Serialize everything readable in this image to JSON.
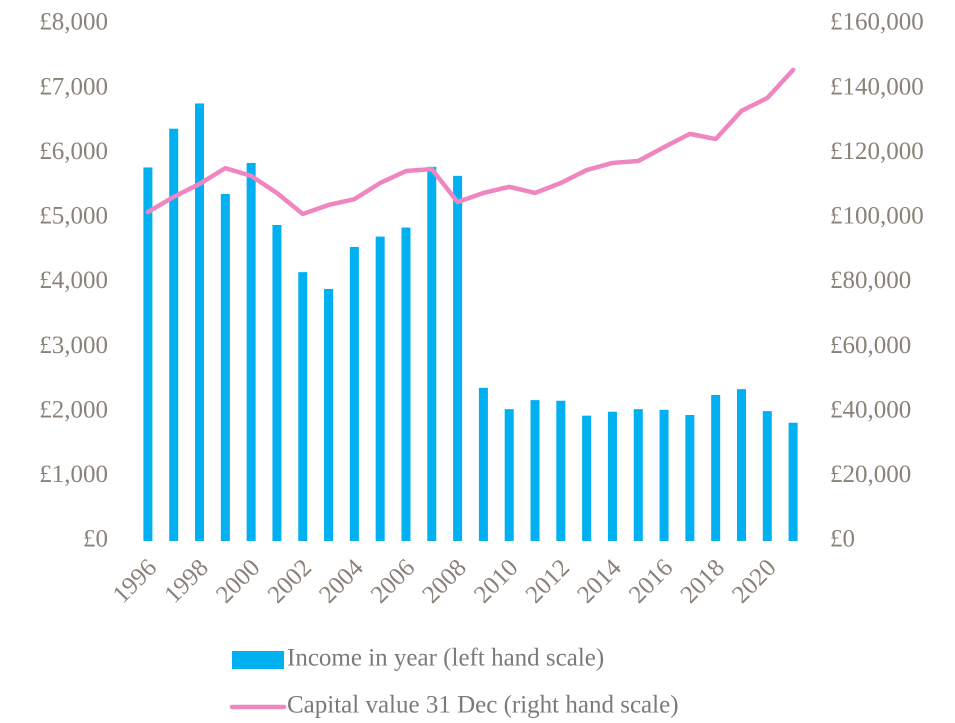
{
  "chart_data": {
    "type": "bar-line",
    "categories": [
      "1996",
      null,
      "1998",
      null,
      "2000",
      null,
      "2002",
      null,
      "2004",
      null,
      "2006",
      null,
      "2008",
      null,
      "2010",
      null,
      "2012",
      null,
      "2014",
      null,
      "2016",
      null,
      "2018",
      null,
      "2020",
      null
    ],
    "series": [
      {
        "name": "Income in year (left hand scale)",
        "type": "bar",
        "color": "#00b0f0",
        "axis": "y",
        "values": [
          5780,
          6380,
          6770,
          5370,
          5850,
          4890,
          4160,
          3900,
          4550,
          4710,
          4850,
          5790,
          5650,
          2370,
          2040,
          2180,
          2170,
          1940,
          2000,
          2040,
          2030,
          1950,
          2260,
          2350,
          2010,
          1830
        ]
      },
      {
        "name": "Capital value 31 Dec (right hand scale)",
        "type": "line",
        "color": "#ef86c1",
        "axis": "y2",
        "values": [
          101800,
          106500,
          110500,
          115400,
          113000,
          107700,
          101200,
          104000,
          105800,
          110800,
          114500,
          115100,
          104900,
          107700,
          109600,
          107700,
          110800,
          114800,
          117000,
          117600,
          121900,
          126000,
          124400,
          133100,
          137100,
          145800
        ]
      }
    ],
    "ylim": [
      0,
      8000
    ],
    "yticks": [
      {
        "value": 0,
        "label": "£0"
      },
      {
        "value": 1000,
        "label": "£1,000"
      },
      {
        "value": 2000,
        "label": "£2,000"
      },
      {
        "value": 3000,
        "label": "£3,000"
      },
      {
        "value": 4000,
        "label": "£4,000"
      },
      {
        "value": 5000,
        "label": "£5,000"
      },
      {
        "value": 6000,
        "label": "£6,000"
      },
      {
        "value": 7000,
        "label": "£7,000"
      },
      {
        "value": 8000,
        "label": "£8,000"
      }
    ],
    "y2lim": [
      0,
      160000
    ],
    "y2ticks": [
      {
        "value": 0,
        "label": "£0"
      },
      {
        "value": 20000,
        "label": "£20,000"
      },
      {
        "value": 40000,
        "label": "£40,000"
      },
      {
        "value": 60000,
        "label": "£60,000"
      },
      {
        "value": 80000,
        "label": "£80,000"
      },
      {
        "value": 100000,
        "label": "£100,000"
      },
      {
        "value": 120000,
        "label": "£120,000"
      },
      {
        "value": 140000,
        "label": "£140,000"
      },
      {
        "value": 160000,
        "label": "£160,000"
      }
    ],
    "legend": "bottom",
    "grid": false
  }
}
